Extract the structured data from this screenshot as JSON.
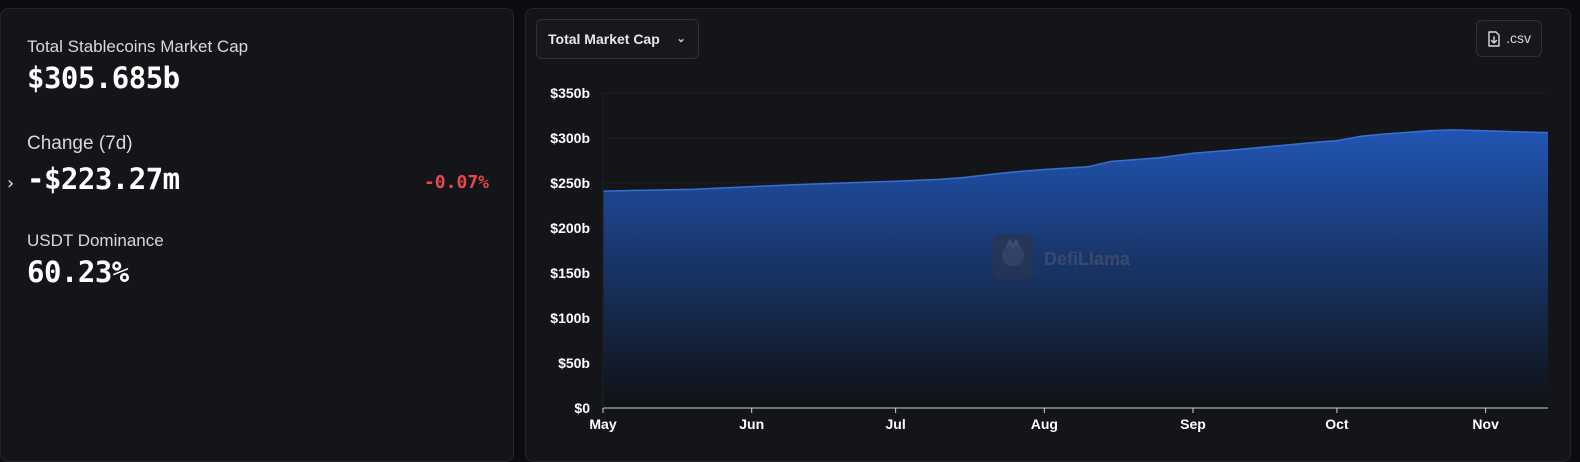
{
  "stats": {
    "market_cap_label": "Total Stablecoins Market Cap",
    "market_cap_value": "$305.685b",
    "change_label": "Change (7d)",
    "change_value": "-$223.27m",
    "change_pct": "-0.07%",
    "dominance_label": "USDT Dominance",
    "dominance_value": "60.23%"
  },
  "controls": {
    "metric_select": "Total Market Cap",
    "csv_label": ".csv"
  },
  "watermark": "DefiLlama",
  "colors": {
    "area_top": "#2155b4",
    "area_bottom": "#0f1114",
    "line": "#3a6fd0",
    "negative": "#e5484d"
  },
  "chart_data": {
    "type": "area",
    "title": "",
    "xlabel": "",
    "ylabel": "",
    "ylim": [
      0,
      350
    ],
    "yticks": [
      0,
      50,
      100,
      150,
      200,
      250,
      300,
      350
    ],
    "ytick_labels": [
      "$0",
      "$50b",
      "$100b",
      "$150b",
      "$200b",
      "$250b",
      "$300b",
      "$350b"
    ],
    "xticks": [
      "May",
      "Jun",
      "Jul",
      "Aug",
      "Sep",
      "Oct",
      "Nov"
    ],
    "x_range": [
      "2025-05-01",
      "2025-11-14"
    ],
    "grid": true,
    "series": [
      {
        "unit": "billions USD",
        "points": [
          [
            "2025-05-01",
            241
          ],
          [
            "2025-05-10",
            242
          ],
          [
            "2025-05-20",
            243
          ],
          [
            "2025-06-01",
            246
          ],
          [
            "2025-06-10",
            248
          ],
          [
            "2025-06-20",
            250
          ],
          [
            "2025-07-01",
            252
          ],
          [
            "2025-07-10",
            254
          ],
          [
            "2025-07-15",
            256
          ],
          [
            "2025-07-20",
            259
          ],
          [
            "2025-07-25",
            262
          ],
          [
            "2025-08-01",
            265
          ],
          [
            "2025-08-10",
            268
          ],
          [
            "2025-08-15",
            274
          ],
          [
            "2025-08-20",
            276
          ],
          [
            "2025-08-25",
            278
          ],
          [
            "2025-09-01",
            283
          ],
          [
            "2025-09-10",
            287
          ],
          [
            "2025-09-20",
            292
          ],
          [
            "2025-09-28",
            296
          ],
          [
            "2025-10-01",
            297
          ],
          [
            "2025-10-06",
            302
          ],
          [
            "2025-10-10",
            304
          ],
          [
            "2025-10-15",
            306
          ],
          [
            "2025-10-20",
            308
          ],
          [
            "2025-10-25",
            309
          ],
          [
            "2025-11-01",
            308
          ],
          [
            "2025-11-07",
            307
          ],
          [
            "2025-11-14",
            306
          ]
        ]
      }
    ]
  }
}
